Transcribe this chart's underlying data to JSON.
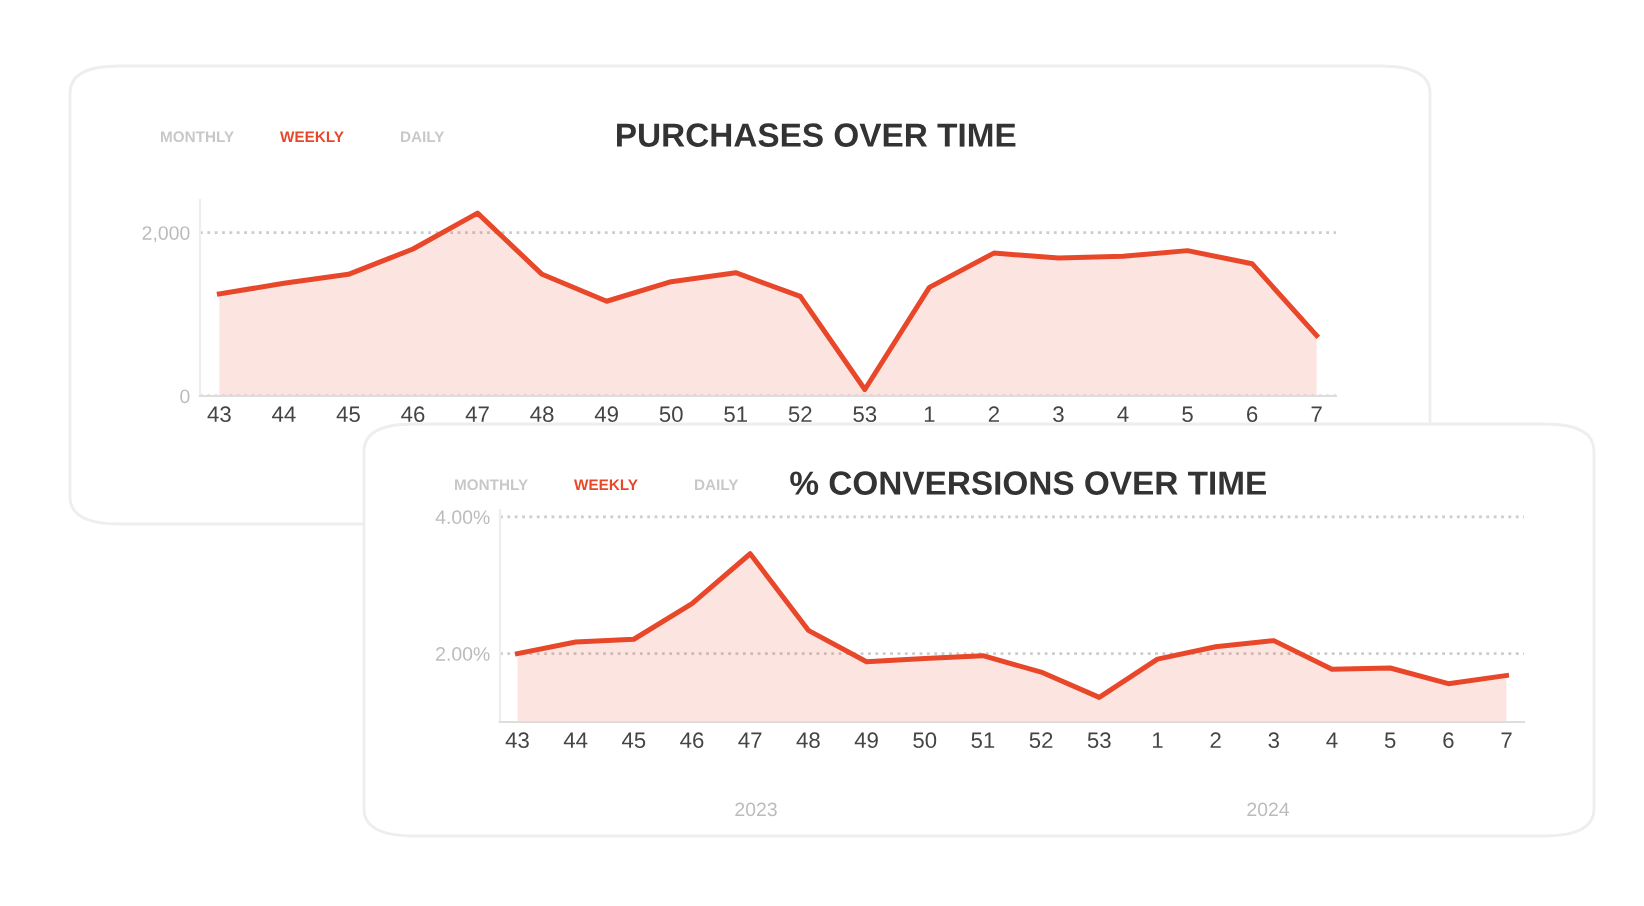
{
  "chart_data": [
    {
      "type": "area",
      "title": "PURCHASES OVER TIME",
      "categories": [
        "43",
        "44",
        "45",
        "46",
        "47",
        "48",
        "49",
        "50",
        "51",
        "52",
        "53",
        "1",
        "2",
        "3",
        "4",
        "5",
        "6",
        "7"
      ],
      "series": [
        {
          "color": "#e8472a",
          "values": [
            1250,
            1380,
            1490,
            1800,
            2240,
            1490,
            1160,
            1400,
            1510,
            1220,
            80,
            1330,
            1750,
            1690,
            1710,
            1780,
            1620,
            740
          ]
        }
      ],
      "ylim": [
        0,
        2400
      ],
      "yticks": [
        {
          "value": 0,
          "label": "0"
        },
        {
          "value": 2000,
          "label": "2,000"
        }
      ],
      "grid": "y",
      "legend": false,
      "annotations": [
        "MONTHLY",
        "WEEKLY",
        "DAILY"
      ]
    },
    {
      "type": "area",
      "title": "% CONVERSIONS OVER TIME",
      "categories": [
        "43",
        "44",
        "45",
        "46",
        "47",
        "48",
        "49",
        "50",
        "51",
        "52",
        "53",
        "1",
        "2",
        "3",
        "4",
        "5",
        "6",
        "7"
      ],
      "series": [
        {
          "color": "#e8472a",
          "values": [
            2.0,
            2.17,
            2.21,
            2.73,
            3.46,
            2.34,
            1.88,
            1.93,
            1.97,
            1.73,
            1.36,
            1.92,
            2.1,
            2.19,
            1.77,
            1.79,
            1.56,
            1.68
          ]
        }
      ],
      "ylim": [
        1.0,
        4.1
      ],
      "yticks": [
        {
          "value": 2,
          "label": "2.00%"
        },
        {
          "value": 4,
          "label": "4.00%"
        }
      ],
      "grid": "y",
      "legend": false,
      "annotations": [
        "MONTHLY",
        "WEEKLY",
        "DAILY",
        "2023",
        "2024"
      ]
    }
  ]
}
